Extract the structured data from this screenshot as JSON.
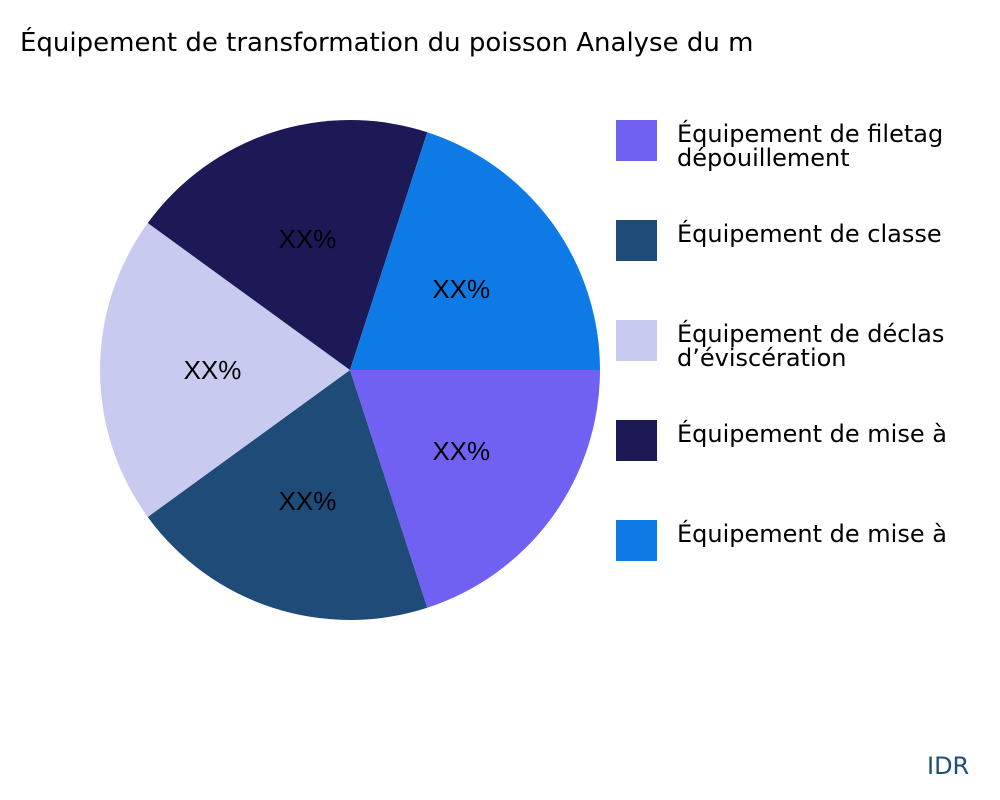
{
  "chart_data": {
    "type": "pie",
    "title": "Équipement de transformation du poisson Analyse du m",
    "slices": [
      {
        "label": [
          "Équipement de filetag",
          "dépouillement"
        ],
        "value": 20,
        "data_label": "XX%",
        "color": "#7161f3"
      },
      {
        "label": [
          "Équipement de classe"
        ],
        "value": 20,
        "data_label": "XX%",
        "color": "#1f4b79"
      },
      {
        "label": [
          "Équipement de déclas",
          "d’éviscération"
        ],
        "value": 20,
        "data_label": "XX%",
        "color": "#c8caf0"
      },
      {
        "label": [
          "Équipement de mise à"
        ],
        "value": 20,
        "data_label": "XX%",
        "color": "#1d1856"
      },
      {
        "label": [
          "Équipement de mise à"
        ],
        "value": 20,
        "data_label": "XX%",
        "color": "#0d7ae6"
      }
    ],
    "legend_position": "right"
  },
  "brand": "IDR"
}
